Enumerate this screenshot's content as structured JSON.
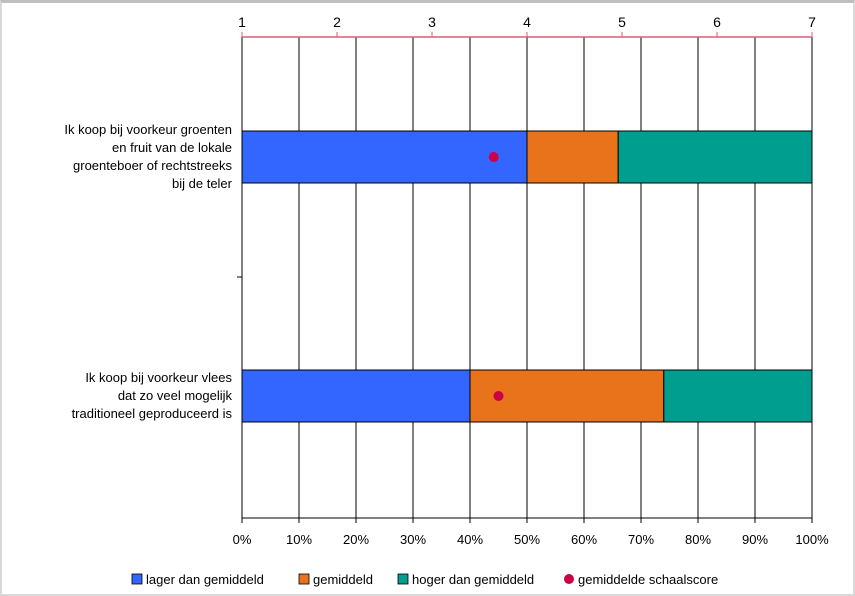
{
  "chart_data": {
    "type": "bar",
    "stacked": true,
    "orientation": "horizontal",
    "categories": [
      [
        "Ik koop bij voorkeur groenten",
        "en fruit van de lokale",
        "groenteboer of rechtstreeks",
        "bij de teler"
      ],
      [
        "Ik koop bij voorkeur vlees",
        "dat zo veel mogelijk",
        "traditioneel geproduceerd is"
      ]
    ],
    "series": [
      {
        "name": "lager dan gemiddeld",
        "color": "#3366ff",
        "values": [
          50,
          40
        ]
      },
      {
        "name": "gemiddeld",
        "color": "#e8731a",
        "values": [
          16,
          34
        ]
      },
      {
        "name": "hoger dan gemiddeld",
        "color": "#009e8e",
        "values": [
          34,
          26
        ]
      }
    ],
    "markers": {
      "name": "gemiddelde schaalscore",
      "color": "#cc0044",
      "values": [
        3.65,
        3.7
      ]
    },
    "x_bottom": {
      "range": [
        0,
        100
      ],
      "ticks": [
        "0%",
        "10%",
        "20%",
        "30%",
        "40%",
        "50%",
        "60%",
        "70%",
        "80%",
        "90%",
        "100%"
      ]
    },
    "x_top": {
      "range": [
        1,
        7
      ],
      "ticks": [
        "1",
        "2",
        "3",
        "4",
        "5",
        "6",
        "7"
      ],
      "axis_color": "#e05a7a"
    },
    "grid": true,
    "legend_position": "bottom"
  }
}
